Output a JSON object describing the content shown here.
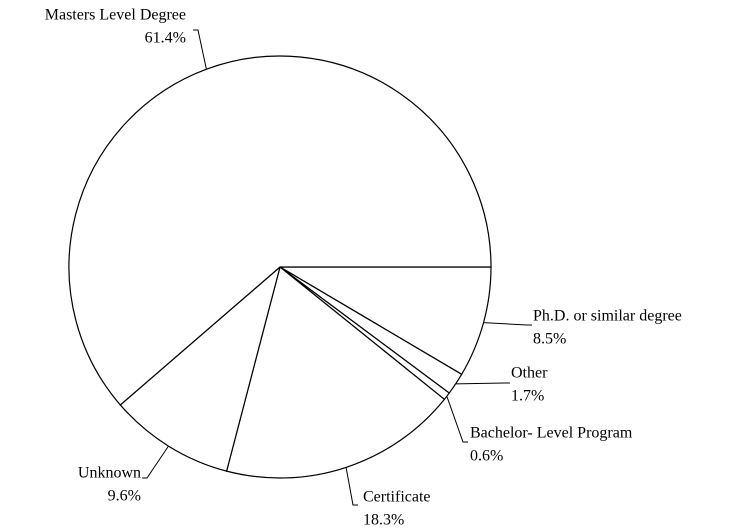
{
  "chart_data": {
    "type": "pie",
    "categories": [
      "Ph.D. or similar degree",
      "Other",
      "Bachelor- Level Program",
      "Certificate",
      "Unknown",
      "Masters Level Degree"
    ],
    "values": [
      8.5,
      1.7,
      0.6,
      18.3,
      9.6,
      61.4
    ],
    "value_labels": [
      "8.5%",
      "1.7%",
      "0.6%",
      "18.3%",
      "9.6%",
      "61.4%"
    ],
    "color": "#ffffff"
  }
}
